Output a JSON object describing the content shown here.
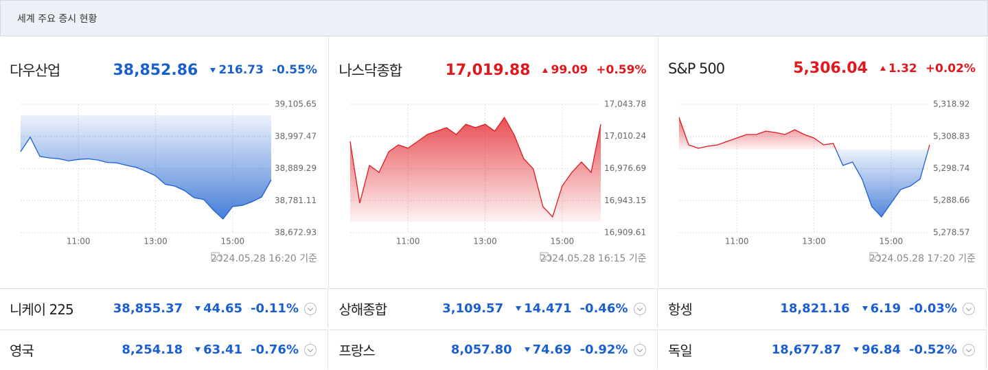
{
  "header": {
    "title": "세계 주요 증시 현황"
  },
  "colors": {
    "up": "#e0181e",
    "down": "#1a5fd0"
  },
  "panels": [
    {
      "name": "다우산업",
      "price": "38,852.86",
      "change": "216.73",
      "change_pct": "-0.55%",
      "direction": "down",
      "timestamp": "2024.05.28 16:20 기준",
      "chart": {
        "type": "area",
        "x": [
          null,
          null,
          null,
          null,
          null,
          null,
          "11:00",
          null,
          null,
          null,
          null,
          null,
          null,
          null,
          "13:00",
          null,
          null,
          null,
          null,
          null,
          null,
          null,
          "15:00",
          null,
          null,
          null,
          null
        ],
        "values": [
          38946,
          38995,
          38930,
          38925,
          38922,
          38915,
          38920,
          38922,
          38918,
          38910,
          38908,
          38900,
          38893,
          38880,
          38865,
          38836,
          38830,
          38815,
          38791,
          38785,
          38749,
          38719,
          38761,
          38765,
          38777,
          38793,
          38851
        ],
        "baseline": 39069.59,
        "ylim": [
          38672.93,
          39105.65
        ],
        "yticks": [
          {
            "value": 38672.93,
            "label": "38,672.93"
          },
          {
            "value": 38781.11,
            "label": "38,781.11"
          },
          {
            "value": 38889.29,
            "label": "38,889.29"
          },
          {
            "value": 38997.47,
            "label": "38,997.47"
          },
          {
            "value": 39105.65,
            "label": "39,105.65"
          }
        ],
        "grid": true
      }
    },
    {
      "name": "나스닥종합",
      "price": "17,019.88",
      "change": "99.09",
      "change_pct": "+0.59%",
      "direction": "up",
      "timestamp": "2024.05.28 16:15 기준",
      "chart": {
        "type": "area",
        "x": [
          null,
          null,
          null,
          null,
          null,
          null,
          "11:00",
          null,
          null,
          null,
          null,
          null,
          null,
          null,
          "13:00",
          null,
          null,
          null,
          null,
          null,
          null,
          null,
          "15:00",
          null,
          null,
          null,
          null
        ],
        "values": [
          17005,
          16940.5,
          16979.9,
          16972.7,
          16994.3,
          17001.4,
          16997.9,
          17005,
          17012.2,
          17015.8,
          17019.4,
          17012.2,
          17023,
          17019.4,
          17023,
          17015.8,
          17030.1,
          17012.2,
          16987.1,
          16976.3,
          16936.9,
          16926.1,
          16958.4,
          16972.7,
          16983.5,
          16972.7,
          17023
        ],
        "baseline": 16920.79,
        "ylim": [
          16909.61,
          17043.78
        ],
        "yticks": [
          {
            "value": 16909.61,
            "label": "16,909.61"
          },
          {
            "value": 16943.15,
            "label": "16,943.15"
          },
          {
            "value": 16976.69,
            "label": "16,976.69"
          },
          {
            "value": 17010.24,
            "label": "17,010.24"
          },
          {
            "value": 17043.78,
            "label": "17,043.78"
          }
        ],
        "grid": true
      }
    },
    {
      "name": "S&P 500",
      "price": "5,306.04",
      "change": "1.32",
      "change_pct": "+0.02%",
      "direction": "up",
      "timestamp": "2024.05.28 17:20 기준",
      "chart": {
        "type": "area",
        "x": [
          null,
          null,
          null,
          null,
          null,
          null,
          "11:00",
          null,
          null,
          null,
          null,
          null,
          null,
          null,
          "13:00",
          null,
          null,
          null,
          null,
          null,
          null,
          null,
          "15:00",
          null,
          null,
          null,
          null
        ],
        "values": [
          5314.82,
          5306.19,
          5305.11,
          5305.76,
          5306.19,
          5307.27,
          5308.35,
          5309.42,
          5309.42,
          5310.5,
          5310.07,
          5309.42,
          5310.94,
          5309.42,
          5308.35,
          5306.19,
          5306.62,
          5299.71,
          5300.79,
          5295.4,
          5286.77,
          5283.53,
          5287.85,
          5292.16,
          5293.24,
          5295.4,
          5306.19
        ],
        "baseline": 5304.72,
        "ylim": [
          5278.57,
          5318.92
        ],
        "yticks": [
          {
            "value": 5278.57,
            "label": "5,278.57"
          },
          {
            "value": 5288.66,
            "label": "5,288.66"
          },
          {
            "value": 5298.74,
            "label": "5,298.74"
          },
          {
            "value": 5308.83,
            "label": "5,308.83"
          },
          {
            "value": 5318.92,
            "label": "5,318.92"
          }
        ],
        "grid": true
      }
    }
  ],
  "rows": [
    {
      "name": "니케이 225",
      "price": "38,855.37",
      "change": "44.65",
      "change_pct": "-0.11%",
      "direction": "down"
    },
    {
      "name": "상해종합",
      "price": "3,109.57",
      "change": "14.471",
      "change_pct": "-0.46%",
      "direction": "down"
    },
    {
      "name": "항셍",
      "price": "18,821.16",
      "change": "6.19",
      "change_pct": "-0.03%",
      "direction": "down"
    },
    {
      "name": "영국",
      "price": "8,254.18",
      "change": "63.41",
      "change_pct": "-0.76%",
      "direction": "down"
    },
    {
      "name": "프랑스",
      "price": "8,057.80",
      "change": "74.69",
      "change_pct": "-0.92%",
      "direction": "down"
    },
    {
      "name": "독일",
      "price": "18,677.87",
      "change": "96.84",
      "change_pct": "-0.52%",
      "direction": "down"
    }
  ]
}
